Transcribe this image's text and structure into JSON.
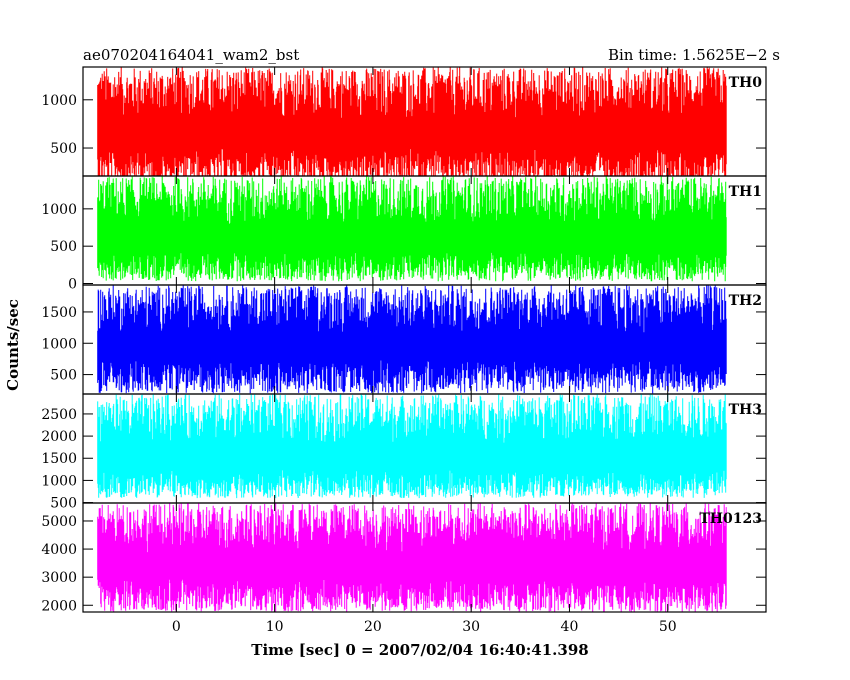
{
  "chart_data": {
    "type": "line",
    "title": "ae070204164041_wam2_bst",
    "subtitle": "Bin time: 1.5625E−2 s",
    "xlabel": "Time [sec] 0 = 2007/02/04 16:40:41.398",
    "ylabel": "Counts/sec",
    "xlim": [
      -9.5,
      60
    ],
    "data_x_range": [
      -8.0,
      56.0
    ],
    "x_ticks": [
      0,
      10,
      20,
      30,
      40,
      50
    ],
    "grid": false,
    "legend": "panel labels top-right",
    "panels": [
      {
        "name": "TH0",
        "color": "#ff0000",
        "ylim": [
          210,
          1340
        ],
        "y_ticks": [
          500,
          1000
        ],
        "mean": 620,
        "typical_range": [
          120,
          1340
        ]
      },
      {
        "name": "TH1",
        "color": "#00ff00",
        "ylim": [
          -20,
          1440
        ],
        "y_ticks": [
          0,
          500,
          1000
        ],
        "mean": 560,
        "typical_range": [
          30,
          1440
        ]
      },
      {
        "name": "TH2",
        "color": "#0000ff",
        "ylim": [
          190,
          1930
        ],
        "y_ticks": [
          500,
          1000,
          1500
        ],
        "mean": 920,
        "typical_range": [
          200,
          1930
        ]
      },
      {
        "name": "TH3",
        "color": "#00ffff",
        "ylim": [
          490,
          2950
        ],
        "y_ticks": [
          500,
          1000,
          1500,
          2000,
          2500
        ],
        "mean": 1450,
        "typical_range": [
          600,
          2950
        ]
      },
      {
        "name": "TH0123",
        "color": "#ff00ff",
        "ylim": [
          1760,
          5640
        ],
        "y_ticks": [
          2000,
          3000,
          4000,
          5000
        ],
        "mean": 3300,
        "typical_range": [
          1760,
          5640
        ]
      }
    ]
  }
}
